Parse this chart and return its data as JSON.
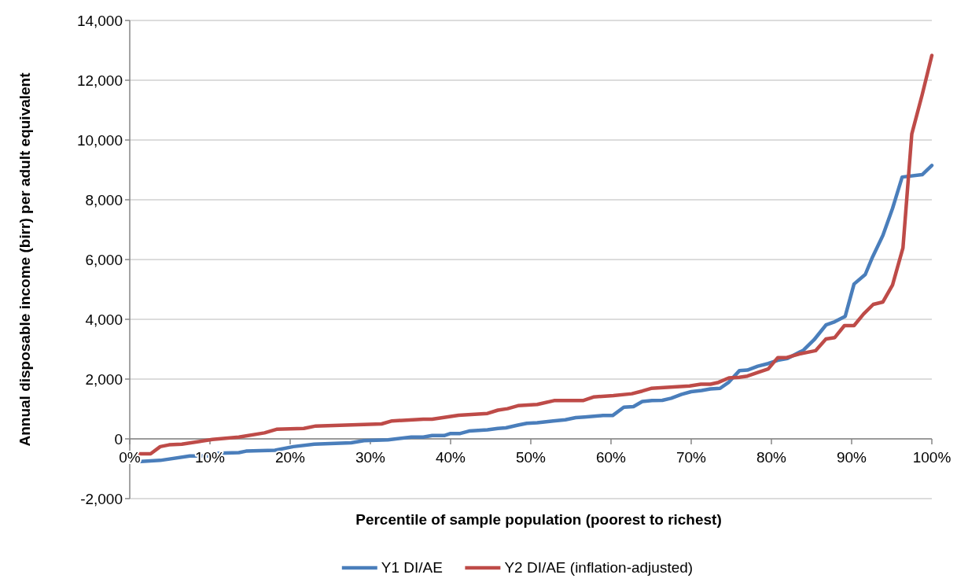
{
  "chart_data": {
    "type": "line",
    "xlabel": "Percentile of sample population (poorest to richest)",
    "ylabel": "Annual disposable income (birr) per adult equivalent",
    "xlim": [
      0,
      100
    ],
    "ylim": [
      -2000,
      14000
    ],
    "xticks": [
      {
        "value": 0,
        "label": "0%"
      },
      {
        "value": 10,
        "label": "10%"
      },
      {
        "value": 20,
        "label": "20%"
      },
      {
        "value": 30,
        "label": "30%"
      },
      {
        "value": 40,
        "label": "40%"
      },
      {
        "value": 50,
        "label": "50%"
      },
      {
        "value": 60,
        "label": "60%"
      },
      {
        "value": 70,
        "label": "70%"
      },
      {
        "value": 80,
        "label": "80%"
      },
      {
        "value": 90,
        "label": "90%"
      },
      {
        "value": 100,
        "label": "100%"
      }
    ],
    "yticks": [
      {
        "value": -2000,
        "label": "-2,000"
      },
      0,
      {
        "value": 2000,
        "label": "2,000"
      },
      {
        "value": 4000,
        "label": "4,000"
      },
      {
        "value": 6000,
        "label": "6,000"
      },
      {
        "value": 8000,
        "label": "8,000"
      },
      {
        "value": 10000,
        "label": "10,000"
      },
      {
        "value": 12000,
        "label": "12,000"
      },
      {
        "value": 14000,
        "label": "14,000"
      }
    ],
    "grid": "y",
    "legend": "bottom",
    "series": [
      {
        "name": "Y1 DI/AE",
        "color": "#4a7ebb",
        "x": [
          1,
          3.8,
          7.5,
          9.8,
          11.1,
          13.6,
          14.5,
          18.1,
          20.4,
          23,
          27.6,
          29.2,
          32.2,
          35.1,
          36.6,
          37.7,
          39.2,
          40,
          41.2,
          42.3,
          44.6,
          45.9,
          46.9,
          48.4,
          49.5,
          50.8,
          52.8,
          54.3,
          55.6,
          56.7,
          59,
          60.2,
          61.6,
          62.8,
          63.9,
          65.1,
          66.4,
          67.5,
          68.8,
          70,
          71.3,
          72.4,
          73.6,
          74.7,
          76,
          77,
          78.3,
          79.6,
          80.8,
          82,
          84,
          85.3,
          86.8,
          87.9,
          89.2,
          90.3,
          91.7,
          92.6,
          93.9,
          95.1,
          96.3,
          98.8,
          100
        ],
        "values": [
          -760,
          -720,
          -570,
          -570,
          -480,
          -460,
          -410,
          -380,
          -260,
          -180,
          -130,
          -60,
          -30,
          60,
          60,
          110,
          110,
          180,
          180,
          260,
          300,
          350,
          370,
          460,
          520,
          540,
          600,
          640,
          710,
          730,
          780,
          780,
          1060,
          1080,
          1250,
          1280,
          1290,
          1360,
          1490,
          1580,
          1620,
          1670,
          1690,
          1900,
          2280,
          2300,
          2430,
          2520,
          2630,
          2690,
          2970,
          3310,
          3810,
          3920,
          4100,
          5180,
          5500,
          6080,
          6810,
          7710,
          8760,
          8840,
          9150
        ]
      },
      {
        "name": "Y2 DI/AE (inflation-adjusted)",
        "color": "#be4b48",
        "x": [
          1,
          2.6,
          3.8,
          4.9,
          6.5,
          10.3,
          13.6,
          16.8,
          18.3,
          21.7,
          23.2,
          31.4,
          32.7,
          36.6,
          37.7,
          41,
          44.6,
          45.9,
          47.1,
          48.4,
          50.8,
          52.9,
          56.5,
          57.8,
          60.3,
          62.6,
          63.9,
          65,
          69.8,
          71.2,
          72.4,
          73.4,
          74.7,
          76,
          77,
          78.5,
          79.6,
          80.8,
          81.9,
          83.6,
          85.5,
          86.8,
          87.9,
          89.1,
          90.3,
          91.5,
          92.7,
          93.9,
          95.1,
          96.4,
          97.5,
          98.8,
          100
        ],
        "values": [
          -500,
          -500,
          -260,
          -200,
          -180,
          -20,
          60,
          200,
          320,
          350,
          430,
          500,
          600,
          660,
          660,
          790,
          850,
          960,
          1010,
          1110,
          1150,
          1280,
          1280,
          1400,
          1450,
          1510,
          1600,
          1690,
          1770,
          1830,
          1830,
          1890,
          2040,
          2060,
          2100,
          2240,
          2340,
          2720,
          2720,
          2850,
          2950,
          3340,
          3390,
          3790,
          3790,
          4180,
          4500,
          4580,
          5150,
          6390,
          10200,
          11520,
          12830
        ]
      }
    ]
  }
}
